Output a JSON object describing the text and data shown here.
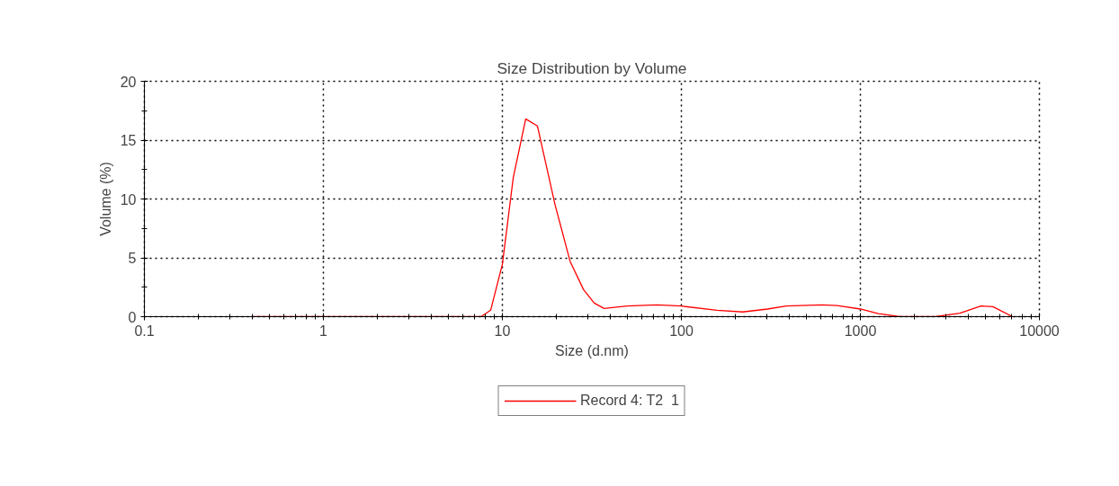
{
  "chart_data": {
    "type": "line",
    "title": "Size Distribution by Volume",
    "xlabel": "Size (d.nm)",
    "ylabel": "Volume (%)",
    "log": "x",
    "xlim": [
      0.1,
      10000
    ],
    "xticks": [
      0.1,
      1,
      10,
      100,
      1000,
      10000
    ],
    "ylim": [
      0,
      20
    ],
    "yticks": [
      0,
      5,
      10,
      15,
      20
    ],
    "grid": true,
    "legend": "bottom",
    "line_style": "solid",
    "marker": "none",
    "series": [
      {
        "name": "Record 4: T2  1",
        "color": "#ff0000",
        "x": [
          0.4,
          7.6,
          8.6,
          10.0,
          11.5,
          13.5,
          15.7,
          19.7,
          23.9,
          28.4,
          32.6,
          37,
          49.8,
          73,
          99.6,
          158,
          220,
          303,
          385,
          610,
          740,
          1000,
          1260,
          1660,
          2630,
          3600,
          4710,
          5500,
          7080
        ],
        "values": [
          0,
          0,
          0.55,
          4.45,
          11.8,
          16.8,
          16.2,
          9.5,
          4.7,
          2.3,
          1.15,
          0.7,
          0.9,
          1.0,
          0.9,
          0.55,
          0.4,
          0.65,
          0.9,
          1.0,
          0.95,
          0.65,
          0.25,
          0,
          0,
          0.3,
          0.9,
          0.85,
          0
        ]
      }
    ]
  }
}
